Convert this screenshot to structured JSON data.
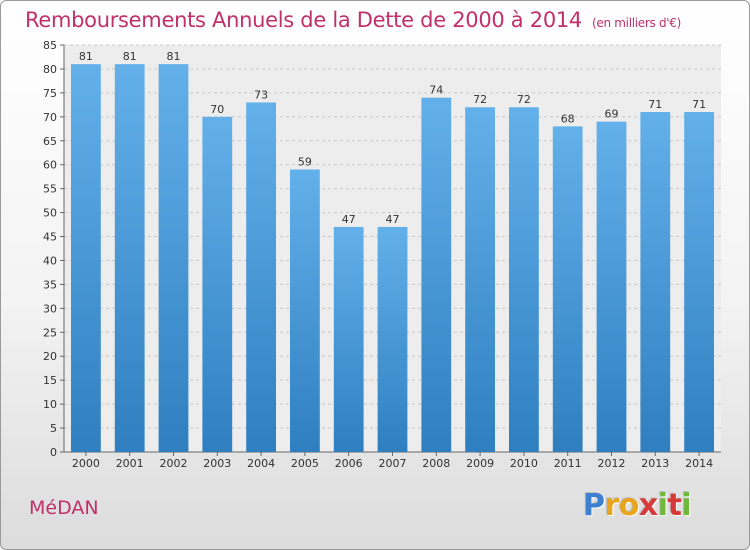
{
  "header": {
    "title": "Remboursements Annuels de la Dette de 2000 à 2014",
    "unit": "(en milliers d'€)"
  },
  "footer": {
    "commune": "MéDAN",
    "logo": [
      "P",
      "r",
      "o",
      "x",
      "i",
      "t",
      "i"
    ]
  },
  "colors": {
    "title": "#c0306a",
    "bar_top": "#63b0ea",
    "bar_bottom": "#2f7fc0",
    "logo": [
      "#3d7fd0",
      "#e8a41c",
      "#e8a41c",
      "#d83a3a",
      "#6fb83a",
      "#d83a3a",
      "#6fb83a"
    ]
  },
  "chart_data": {
    "type": "bar",
    "title": "Remboursements Annuels de la Dette de 2000 à 2014",
    "xlabel": "",
    "ylabel": "",
    "categories": [
      "2000",
      "2001",
      "2002",
      "2003",
      "2004",
      "2005",
      "2006",
      "2007",
      "2008",
      "2009",
      "2010",
      "2011",
      "2012",
      "2013",
      "2014"
    ],
    "values": [
      81,
      81,
      81,
      70,
      73,
      59,
      47,
      47,
      74,
      72,
      72,
      68,
      69,
      71,
      71
    ],
    "ylim": [
      0,
      85
    ],
    "yticks": [
      0,
      5,
      10,
      15,
      20,
      25,
      30,
      35,
      40,
      45,
      50,
      55,
      60,
      65,
      70,
      75,
      80,
      85
    ],
    "grid": true,
    "legend": "none"
  }
}
